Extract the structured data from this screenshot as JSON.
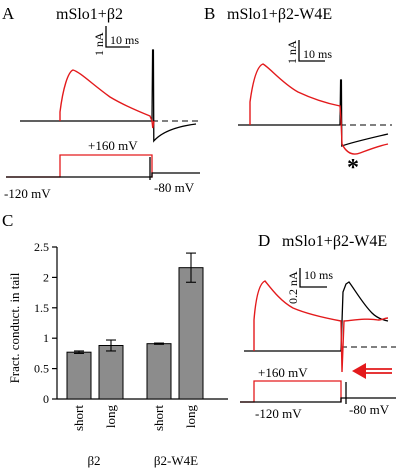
{
  "colors": {
    "red_trace": "#e31a1c",
    "black_trace": "#000000",
    "bar_fill": "#8c8c8c",
    "arrow": "#e31a1c"
  },
  "panels": {
    "A": {
      "letter": "A",
      "title": "mSlo1+β2",
      "scale_current": "1 nA",
      "scale_time": "10 ms",
      "volt_step": "+160 mV",
      "volt_hold": "-120 mV",
      "volt_tail": "-80 mV"
    },
    "B": {
      "letter": "B",
      "title": "mSlo1+β2-W4E",
      "scale_current": "1 nA",
      "scale_time": "10 ms",
      "asterisk": "*"
    },
    "C": {
      "letter": "C"
    },
    "D": {
      "letter": "D",
      "title": "mSlo1+β2-W4E",
      "scale_current": "0.2 nA",
      "scale_time": "10 ms",
      "volt_step": "+160 mV",
      "volt_hold": "-120 mV",
      "volt_tail": "-80 mV"
    }
  },
  "chart_data": {
    "type": "bar",
    "ylabel": "Fract. conduct. in tail",
    "ylim": [
      0,
      2.5
    ],
    "yticks": [
      "0",
      "0.5",
      "1",
      "1.5",
      "2",
      "2.5"
    ],
    "groups": [
      "β2",
      "β2-W4E"
    ],
    "categories": [
      "short",
      "long",
      "short",
      "long"
    ],
    "values": [
      0.77,
      0.88,
      0.91,
      2.16
    ],
    "errors": [
      0.02,
      0.09,
      0.01,
      0.24
    ]
  }
}
